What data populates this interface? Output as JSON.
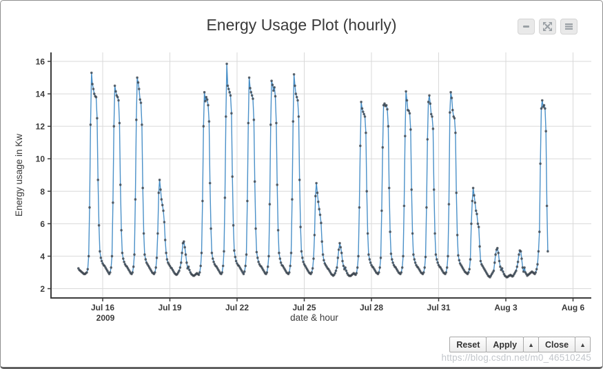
{
  "header": {
    "title": "Energy Usage Plot (hourly)",
    "buttons": [
      {
        "name": "collapse",
        "icon": "minus"
      },
      {
        "name": "expand",
        "icon": "arrows-out"
      },
      {
        "name": "menu",
        "icon": "bars"
      }
    ]
  },
  "footer": {
    "buttons": [
      {
        "label": "Reset"
      },
      {
        "label": "Apply"
      },
      {
        "label": "▲"
      },
      {
        "label": "Close"
      },
      {
        "label": "▲"
      }
    ]
  },
  "watermark": "https://blog.csdn.net/m0_46510245",
  "colors": {
    "line": "#4a90c8",
    "marker": "#3e444b",
    "grid": "#d9d9d9",
    "axis": "#3b3b3b",
    "button_bg": "#e9e9e9"
  },
  "chart_data": {
    "type": "line",
    "title": "Energy Usage Plot (hourly)",
    "xlabel": "date & hour",
    "ylabel": "Energy usage in Kw",
    "sampling": "hourly",
    "year": "2009",
    "start": "Jul 14 2009 22:00",
    "end": "Aug 4 2009 21:00",
    "ylim": [
      1.4,
      16.6
    ],
    "y_ticks": [
      2,
      4,
      6,
      8,
      10,
      12,
      14,
      16
    ],
    "x_ticks": [
      {
        "label": "Jul 16",
        "sub": "2009",
        "day": 0
      },
      {
        "label": "Jul 19",
        "day": 3
      },
      {
        "label": "Jul 22",
        "day": 6
      },
      {
        "label": "Jul 25",
        "day": 9
      },
      {
        "label": "Jul 28",
        "day": 12
      },
      {
        "label": "Jul 31",
        "day": 15
      },
      {
        "label": "Aug 3",
        "day": 18
      },
      {
        "label": "Aug 6",
        "day": 21
      }
    ],
    "grid": true,
    "legend": false,
    "marker_style": "dot",
    "days": [
      {
        "date": "Jul 14",
        "day": -2,
        "start_hour": 22,
        "values": [
          3.25,
          3.15
        ]
      },
      {
        "date": "Jul 15",
        "day": -1,
        "values": [
          3.1,
          3.05,
          3.0,
          2.95,
          2.9,
          2.9,
          2.95,
          3.0,
          3.2,
          4.0,
          7.0,
          12.1,
          15.3,
          14.6,
          14.3,
          14.0,
          13.85,
          13.8,
          12.5,
          8.7,
          5.9,
          4.3,
          3.9,
          3.7
        ]
      },
      {
        "date": "Jul 16",
        "day": 0,
        "values": [
          3.55,
          3.45,
          3.4,
          3.3,
          3.2,
          3.1,
          3.0,
          2.9,
          3.0,
          3.3,
          4.0,
          7.3,
          12.0,
          14.5,
          14.15,
          13.9,
          13.8,
          13.6,
          12.2,
          8.4,
          5.6,
          4.2,
          3.85,
          3.65
        ]
      },
      {
        "date": "Jul 17",
        "day": 1,
        "values": [
          3.5,
          3.4,
          3.35,
          3.25,
          3.15,
          3.05,
          2.95,
          2.9,
          3.0,
          3.35,
          4.1,
          7.5,
          12.4,
          15.0,
          14.7,
          14.3,
          13.65,
          13.45,
          12.1,
          8.2,
          5.4,
          4.1,
          3.8,
          3.6
        ]
      },
      {
        "date": "Jul 18",
        "day": 2,
        "values": [
          3.5,
          3.4,
          3.3,
          3.2,
          3.1,
          3.0,
          2.95,
          2.9,
          3.0,
          3.3,
          3.9,
          5.4,
          7.9,
          8.7,
          8.1,
          7.5,
          7.15,
          6.8,
          6.1,
          5.0,
          4.2,
          3.8,
          3.6,
          3.5
        ]
      },
      {
        "date": "Jul 19",
        "day": 3,
        "values": [
          3.4,
          3.3,
          3.25,
          3.15,
          3.05,
          2.95,
          2.9,
          2.85,
          2.9,
          3.0,
          3.1,
          3.3,
          3.6,
          4.2,
          4.8,
          4.9,
          4.55,
          4.1,
          3.6,
          3.25,
          3.35,
          3.15,
          3.0,
          2.9
        ]
      },
      {
        "date": "Jul 20",
        "day": 4,
        "values": [
          2.85,
          2.8,
          2.8,
          2.85,
          2.9,
          2.95,
          2.9,
          2.85,
          3.0,
          3.4,
          4.2,
          7.4,
          12.0,
          14.1,
          13.55,
          13.8,
          13.65,
          13.3,
          12.3,
          8.5,
          5.7,
          4.2,
          3.85,
          3.65
        ]
      },
      {
        "date": "Jul 21",
        "day": 5,
        "values": [
          3.5,
          3.4,
          3.35,
          3.25,
          3.15,
          3.05,
          2.95,
          2.9,
          3.0,
          3.4,
          4.3,
          7.6,
          12.6,
          15.85,
          14.5,
          14.3,
          14.1,
          13.9,
          12.8,
          8.9,
          5.9,
          4.35,
          3.95,
          3.7
        ]
      },
      {
        "date": "Jul 22",
        "day": 6,
        "values": [
          3.55,
          3.45,
          3.4,
          3.3,
          3.2,
          3.1,
          3.0,
          2.9,
          3.05,
          3.4,
          4.1,
          7.4,
          12.2,
          15.0,
          14.35,
          14.1,
          13.9,
          13.7,
          12.4,
          8.6,
          5.7,
          4.25,
          3.9,
          3.65
        ]
      },
      {
        "date": "Jul 23",
        "day": 7,
        "values": [
          3.5,
          3.4,
          3.35,
          3.25,
          3.15,
          3.05,
          2.95,
          2.9,
          3.0,
          3.35,
          4.0,
          7.2,
          12.1,
          14.8,
          14.55,
          14.2,
          14.4,
          13.85,
          12.2,
          8.4,
          5.6,
          4.2,
          3.85,
          3.6
        ]
      },
      {
        "date": "Jul 24",
        "day": 8,
        "values": [
          3.45,
          3.4,
          3.3,
          3.2,
          3.1,
          3.0,
          2.95,
          2.9,
          3.0,
          3.4,
          4.2,
          7.5,
          12.3,
          15.2,
          14.5,
          14.0,
          13.8,
          13.6,
          12.6,
          8.7,
          5.8,
          4.3,
          3.9,
          3.65
        ]
      },
      {
        "date": "Jul 25",
        "day": 9,
        "values": [
          3.5,
          3.4,
          3.3,
          3.2,
          3.1,
          3.0,
          2.95,
          2.9,
          3.0,
          3.25,
          3.85,
          5.3,
          7.7,
          8.5,
          7.9,
          7.35,
          6.9,
          6.55,
          6.05,
          4.9,
          4.1,
          3.75,
          3.55,
          3.45
        ]
      },
      {
        "date": "Jul 26",
        "day": 10,
        "values": [
          3.35,
          3.25,
          3.2,
          3.1,
          3.0,
          2.9,
          2.85,
          2.8,
          2.85,
          2.95,
          3.1,
          3.3,
          3.9,
          4.4,
          4.8,
          4.55,
          4.2,
          3.7,
          3.4,
          3.2,
          3.3,
          3.1,
          2.95,
          2.85
        ]
      },
      {
        "date": "Jul 27",
        "day": 11,
        "values": [
          2.8,
          2.78,
          2.8,
          2.85,
          2.9,
          2.95,
          2.9,
          2.85,
          2.95,
          3.3,
          4.0,
          7.0,
          10.8,
          13.5,
          13.1,
          12.9,
          12.75,
          12.6,
          11.6,
          8.0,
          5.4,
          4.1,
          3.8,
          3.6
        ]
      },
      {
        "date": "Jul 28",
        "day": 12,
        "values": [
          3.45,
          3.35,
          3.3,
          3.2,
          3.1,
          3.0,
          2.95,
          2.9,
          3.0,
          3.3,
          3.9,
          6.8,
          10.7,
          13.3,
          13.4,
          13.25,
          13.3,
          13.05,
          12.0,
          8.2,
          5.5,
          4.15,
          3.8,
          3.6
        ]
      },
      {
        "date": "Jul 29",
        "day": 13,
        "values": [
          3.45,
          3.35,
          3.3,
          3.2,
          3.1,
          3.0,
          2.95,
          2.9,
          3.0,
          3.3,
          4.0,
          7.1,
          11.4,
          14.15,
          13.6,
          13.0,
          12.95,
          12.8,
          11.8,
          8.1,
          5.4,
          4.1,
          3.8,
          3.6
        ]
      },
      {
        "date": "Jul 30",
        "day": 14,
        "values": [
          3.45,
          3.35,
          3.3,
          3.2,
          3.1,
          3.0,
          2.95,
          2.9,
          3.0,
          3.3,
          3.95,
          7.0,
          11.2,
          13.5,
          13.9,
          13.4,
          12.75,
          12.6,
          11.85,
          8.1,
          5.4,
          4.1,
          3.8,
          3.6
        ]
      },
      {
        "date": "Jul 31",
        "day": 15,
        "values": [
          3.45,
          3.35,
          3.3,
          3.2,
          3.1,
          3.0,
          2.95,
          2.9,
          3.0,
          3.3,
          4.0,
          7.2,
          12.85,
          14.1,
          13.75,
          13.0,
          12.6,
          12.5,
          11.6,
          7.9,
          5.3,
          4.05,
          3.75,
          3.55
        ]
      },
      {
        "date": "Aug 1",
        "day": 16,
        "values": [
          3.45,
          3.35,
          3.25,
          3.15,
          3.05,
          3.0,
          2.95,
          2.9,
          3.0,
          3.2,
          3.8,
          6.0,
          7.4,
          8.2,
          7.75,
          7.3,
          6.8,
          6.6,
          6.0,
          5.8,
          4.6,
          3.7,
          3.5,
          3.4
        ]
      },
      {
        "date": "Aug 2",
        "day": 17,
        "values": [
          3.3,
          3.2,
          3.1,
          3.0,
          2.9,
          2.8,
          2.75,
          2.7,
          2.8,
          2.9,
          3.0,
          3.1,
          3.6,
          4.1,
          4.4,
          4.5,
          4.2,
          3.7,
          3.35,
          3.15,
          3.25,
          3.05,
          2.9,
          2.8
        ]
      },
      {
        "date": "Aug 3",
        "day": 18,
        "values": [
          2.75,
          2.7,
          2.72,
          2.78,
          2.8,
          2.85,
          2.8,
          2.75,
          2.8,
          2.9,
          3.0,
          3.1,
          3.35,
          3.65,
          4.1,
          4.35,
          4.3,
          3.85,
          3.3,
          3.05,
          3.3,
          3.0,
          2.9,
          2.8
        ]
      },
      {
        "date": "Aug 4",
        "day": 19,
        "values": [
          2.85,
          2.9,
          2.95,
          3.0,
          3.05,
          3.0,
          2.95,
          2.9,
          3.0,
          3.2,
          3.5,
          4.3,
          5.5,
          9.7,
          13.1,
          13.6,
          13.2,
          13.3,
          13.1,
          11.7,
          7.1,
          4.3
        ]
      }
    ]
  }
}
